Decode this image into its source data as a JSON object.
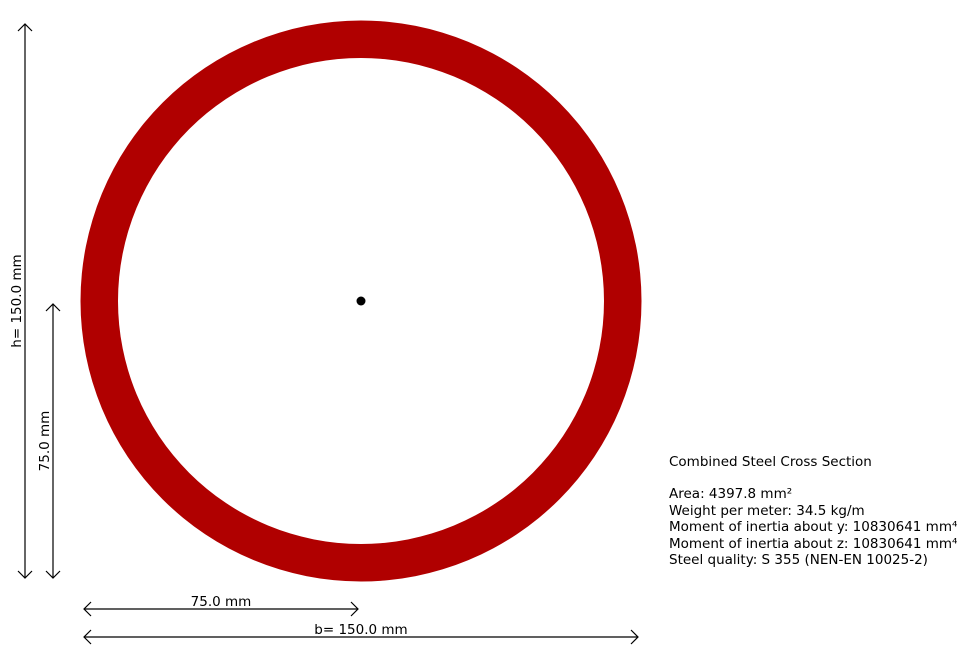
{
  "section": {
    "type": "circular-hollow-section",
    "fill_color": "#b00000",
    "centroid_color": "#000000",
    "outer_diameter_mm": 150.0,
    "radius_mm": 75.0
  },
  "dimensions": {
    "height_label": "h= 150.0 mm",
    "half_height_label": "75.0 mm",
    "half_width_label": "75.0 mm",
    "width_label": "b= 150.0 mm"
  },
  "info": {
    "title": "Combined Steel Cross Section",
    "area": "Area: 4397.8 mm²",
    "weight": "Weight per meter: 34.5 kg/m",
    "inertia_y": "Moment of inertia about y: 10830641 mm⁴",
    "inertia_z": "Moment of inertia about z: 10830641 mm⁴",
    "steel_quality": "Steel quality: S 355 (NEN-EN 10025-2)"
  }
}
